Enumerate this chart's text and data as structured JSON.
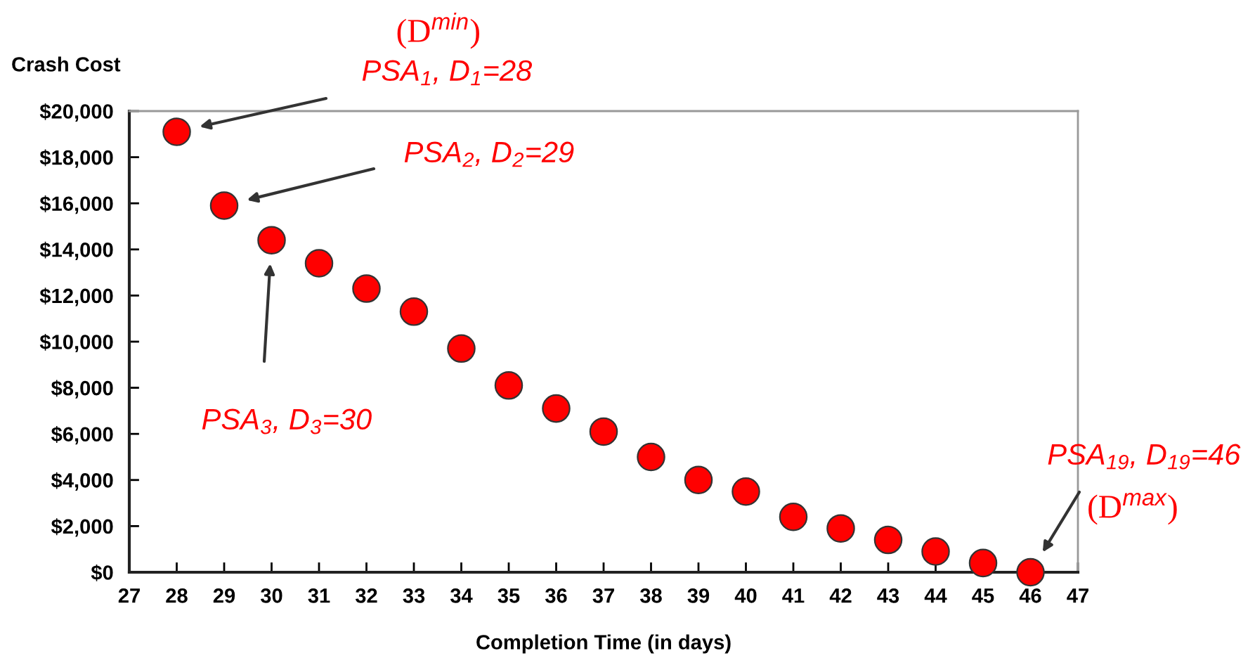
{
  "chart_data": {
    "type": "scatter",
    "xlabel": "Completion Time (in days)",
    "ylabel": "Crash Cost",
    "x": [
      28,
      29,
      30,
      31,
      32,
      33,
      34,
      35,
      36,
      37,
      38,
      39,
      40,
      41,
      42,
      43,
      44,
      45,
      46
    ],
    "series": [
      {
        "color": "#ff0000",
        "values": [
          19100,
          15900,
          14400,
          13400,
          12300,
          11300,
          9700,
          8100,
          7100,
          6100,
          5000,
          4000,
          3500,
          2400,
          1900,
          1400,
          900,
          400,
          0
        ]
      }
    ],
    "xlim": [
      27,
      47
    ],
    "xticks": [
      27,
      28,
      29,
      30,
      31,
      32,
      33,
      34,
      35,
      36,
      37,
      38,
      39,
      40,
      41,
      42,
      43,
      44,
      45,
      46,
      47
    ],
    "ylim": [
      0,
      20000
    ],
    "yticks": [
      {
        "value": 0,
        "label": "$0"
      },
      {
        "value": 2000,
        "label": "$2,000"
      },
      {
        "value": 4000,
        "label": "$4,000"
      },
      {
        "value": 6000,
        "label": "$6,000"
      },
      {
        "value": 8000,
        "label": "$8,000"
      },
      {
        "value": 10000,
        "label": "$10,000"
      },
      {
        "value": 12000,
        "label": "$12,000"
      },
      {
        "value": 14000,
        "label": "$14,000"
      },
      {
        "value": 16000,
        "label": "$16,000"
      },
      {
        "value": 18000,
        "label": "$18,000"
      },
      {
        "value": 20000,
        "label": "$20,000"
      }
    ],
    "marker": "circle",
    "grid": false,
    "annotations": [
      "(D$^{min}$)",
      "PSA$_{1}$, D$_{1}$=28",
      "PSA$_{2}$, D$_{2}$=29",
      "PSA$_{3}$, D$_{3}$=30",
      "PSA$_{19}$, D$_{19}$=46",
      "(D$^{max}$)"
    ]
  }
}
